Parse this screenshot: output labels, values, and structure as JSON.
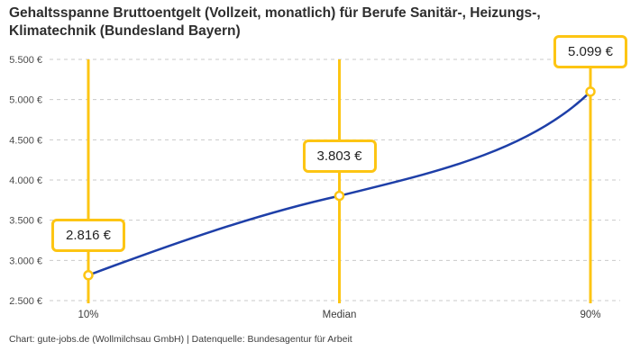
{
  "title": "Gehaltsspanne Bruttoentgelt (Vollzeit, monatlich) für Berufe Sanitär-, Heizungs-, Klimatechnik (Bundesland Bayern)",
  "footer": "Chart: gute-jobs.de (Wollmilchsau GmbH) | Datenquelle: Bundesagentur für Arbeit",
  "chart_data": {
    "type": "line",
    "title": "Gehaltsspanne Bruttoentgelt (Vollzeit, monatlich) für Berufe Sanitär-, Heizungs-, Klimatechnik (Bundesland Bayern)",
    "categories": [
      "10%",
      "Median",
      "90%"
    ],
    "values": [
      2816,
      3803,
      5099
    ],
    "value_labels": [
      "2.816 €",
      "3.803 €",
      "5.099 €"
    ],
    "y_ticks": [
      2500,
      3000,
      3500,
      4000,
      4500,
      5000,
      5500
    ],
    "y_tick_labels": [
      "2.500 €",
      "3.000 €",
      "3.500 €",
      "4.000 €",
      "4.500 €",
      "5.000 €",
      "5.500 €"
    ],
    "ylim": [
      2500,
      5500
    ],
    "xlabel": "",
    "ylabel": "",
    "grid": "horizontal-dashed",
    "legend": "none",
    "colors": {
      "line": "#1E3FA8",
      "highlight": "#FDC513",
      "grid": "#C9C9C9",
      "axis_text": "#4A4A4A",
      "title_text": "#2E2E2E",
      "background": "#FFFFFF"
    }
  }
}
